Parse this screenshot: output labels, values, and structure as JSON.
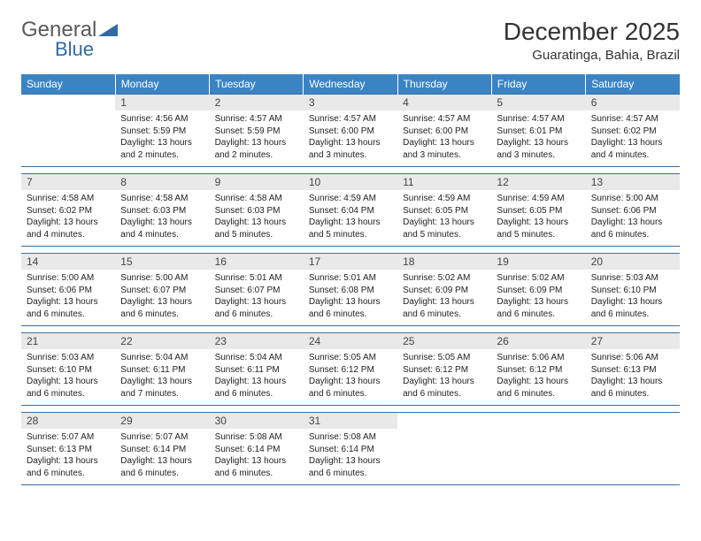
{
  "brand": {
    "part1": "General",
    "part2": "Blue",
    "logo_color": "#2f6aa7"
  },
  "title": "December 2025",
  "location": "Guaratinga, Bahia, Brazil",
  "colors": {
    "header_bg": "#3b84c4",
    "rule": "#3b6fa0",
    "daynum_bg": "#e9e9e9",
    "text": "#222222"
  },
  "weekdays": [
    "Sunday",
    "Monday",
    "Tuesday",
    "Wednesday",
    "Thursday",
    "Friday",
    "Saturday"
  ],
  "weeks": [
    [
      {
        "n": "",
        "sr": "",
        "ss": "",
        "dl": ""
      },
      {
        "n": "1",
        "sr": "4:56 AM",
        "ss": "5:59 PM",
        "dl": "13 hours and 2 minutes."
      },
      {
        "n": "2",
        "sr": "4:57 AM",
        "ss": "5:59 PM",
        "dl": "13 hours and 2 minutes."
      },
      {
        "n": "3",
        "sr": "4:57 AM",
        "ss": "6:00 PM",
        "dl": "13 hours and 3 minutes."
      },
      {
        "n": "4",
        "sr": "4:57 AM",
        "ss": "6:00 PM",
        "dl": "13 hours and 3 minutes."
      },
      {
        "n": "5",
        "sr": "4:57 AM",
        "ss": "6:01 PM",
        "dl": "13 hours and 3 minutes."
      },
      {
        "n": "6",
        "sr": "4:57 AM",
        "ss": "6:02 PM",
        "dl": "13 hours and 4 minutes."
      }
    ],
    [
      {
        "n": "7",
        "sr": "4:58 AM",
        "ss": "6:02 PM",
        "dl": "13 hours and 4 minutes."
      },
      {
        "n": "8",
        "sr": "4:58 AM",
        "ss": "6:03 PM",
        "dl": "13 hours and 4 minutes."
      },
      {
        "n": "9",
        "sr": "4:58 AM",
        "ss": "6:03 PM",
        "dl": "13 hours and 5 minutes."
      },
      {
        "n": "10",
        "sr": "4:59 AM",
        "ss": "6:04 PM",
        "dl": "13 hours and 5 minutes."
      },
      {
        "n": "11",
        "sr": "4:59 AM",
        "ss": "6:05 PM",
        "dl": "13 hours and 5 minutes."
      },
      {
        "n": "12",
        "sr": "4:59 AM",
        "ss": "6:05 PM",
        "dl": "13 hours and 5 minutes."
      },
      {
        "n": "13",
        "sr": "5:00 AM",
        "ss": "6:06 PM",
        "dl": "13 hours and 6 minutes."
      }
    ],
    [
      {
        "n": "14",
        "sr": "5:00 AM",
        "ss": "6:06 PM",
        "dl": "13 hours and 6 minutes."
      },
      {
        "n": "15",
        "sr": "5:00 AM",
        "ss": "6:07 PM",
        "dl": "13 hours and 6 minutes."
      },
      {
        "n": "16",
        "sr": "5:01 AM",
        "ss": "6:07 PM",
        "dl": "13 hours and 6 minutes."
      },
      {
        "n": "17",
        "sr": "5:01 AM",
        "ss": "6:08 PM",
        "dl": "13 hours and 6 minutes."
      },
      {
        "n": "18",
        "sr": "5:02 AM",
        "ss": "6:09 PM",
        "dl": "13 hours and 6 minutes."
      },
      {
        "n": "19",
        "sr": "5:02 AM",
        "ss": "6:09 PM",
        "dl": "13 hours and 6 minutes."
      },
      {
        "n": "20",
        "sr": "5:03 AM",
        "ss": "6:10 PM",
        "dl": "13 hours and 6 minutes."
      }
    ],
    [
      {
        "n": "21",
        "sr": "5:03 AM",
        "ss": "6:10 PM",
        "dl": "13 hours and 6 minutes."
      },
      {
        "n": "22",
        "sr": "5:04 AM",
        "ss": "6:11 PM",
        "dl": "13 hours and 7 minutes."
      },
      {
        "n": "23",
        "sr": "5:04 AM",
        "ss": "6:11 PM",
        "dl": "13 hours and 6 minutes."
      },
      {
        "n": "24",
        "sr": "5:05 AM",
        "ss": "6:12 PM",
        "dl": "13 hours and 6 minutes."
      },
      {
        "n": "25",
        "sr": "5:05 AM",
        "ss": "6:12 PM",
        "dl": "13 hours and 6 minutes."
      },
      {
        "n": "26",
        "sr": "5:06 AM",
        "ss": "6:12 PM",
        "dl": "13 hours and 6 minutes."
      },
      {
        "n": "27",
        "sr": "5:06 AM",
        "ss": "6:13 PM",
        "dl": "13 hours and 6 minutes."
      }
    ],
    [
      {
        "n": "28",
        "sr": "5:07 AM",
        "ss": "6:13 PM",
        "dl": "13 hours and 6 minutes."
      },
      {
        "n": "29",
        "sr": "5:07 AM",
        "ss": "6:14 PM",
        "dl": "13 hours and 6 minutes."
      },
      {
        "n": "30",
        "sr": "5:08 AM",
        "ss": "6:14 PM",
        "dl": "13 hours and 6 minutes."
      },
      {
        "n": "31",
        "sr": "5:08 AM",
        "ss": "6:14 PM",
        "dl": "13 hours and 6 minutes."
      },
      {
        "n": "",
        "sr": "",
        "ss": "",
        "dl": ""
      },
      {
        "n": "",
        "sr": "",
        "ss": "",
        "dl": ""
      },
      {
        "n": "",
        "sr": "",
        "ss": "",
        "dl": ""
      }
    ]
  ],
  "labels": {
    "sunrise": "Sunrise: ",
    "sunset": "Sunset: ",
    "daylight": "Daylight: "
  }
}
